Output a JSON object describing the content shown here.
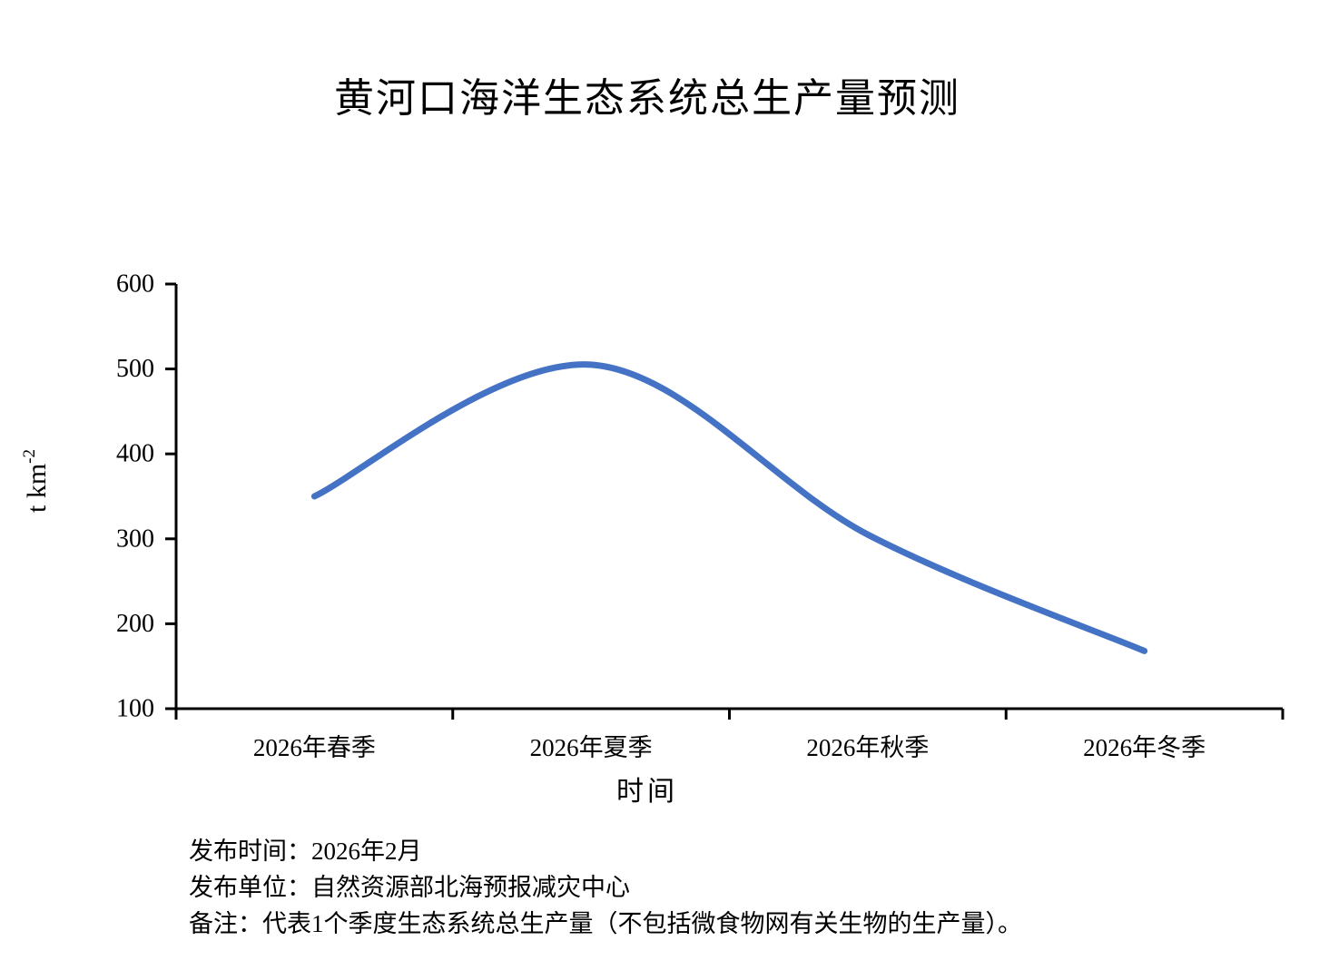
{
  "chart_data": {
    "type": "line",
    "title": "黄河口海洋生态系统总生产量预测",
    "categories": [
      "2026年春季",
      "2026年夏季",
      "2026年秋季",
      "2026年冬季"
    ],
    "values": [
      350,
      505,
      305,
      168
    ],
    "xlabel": "时间",
    "ylabel": "t km⁻²",
    "ylabel_parts": {
      "base": "t km",
      "superscript": "-2"
    },
    "ylim": [
      100,
      600
    ],
    "yticks": [
      600,
      500,
      400,
      300,
      200,
      100
    ],
    "grid": false,
    "legend": "none",
    "smooth": true,
    "line_color": "#4472C4",
    "axis_color": "#000000"
  },
  "footer": {
    "lines": [
      "发布时间：2026年2月",
      "发布单位：自然资源部北海预报减灾中心",
      "备注：代表1个季度生态系统总生产量（不包括微食物网有关生物的生产量）。"
    ]
  }
}
